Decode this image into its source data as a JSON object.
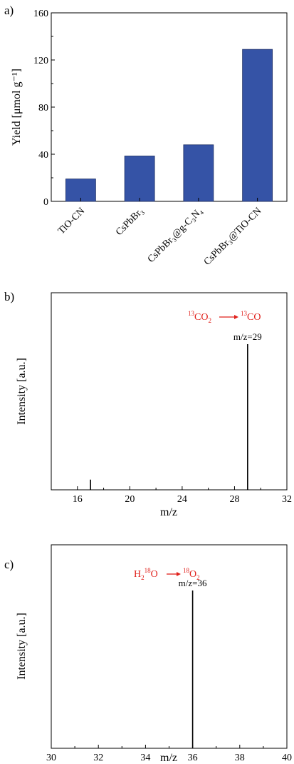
{
  "chart_data": [
    {
      "panel": "a)",
      "type": "bar",
      "categories": [
        "TiO-CN",
        "CsPbBr₃",
        "CsPbBr₃@g-C₃N₄",
        "CsPbBr₃@TiO-CN"
      ],
      "values": [
        19,
        38.5,
        48,
        129
      ],
      "ylabel": "Yield [μmol g⁻¹]",
      "yticks": [
        0,
        40,
        80,
        120,
        160
      ],
      "ylim": [
        0,
        160
      ],
      "bar_color": "#3553a6",
      "grid": false
    },
    {
      "panel": "b)",
      "type": "bar",
      "xlabel": "m/z",
      "ylabel": "Intensity [a.u.]",
      "xticks": [
        16,
        20,
        24,
        28,
        32
      ],
      "xlim": [
        14,
        32
      ],
      "peaks": [
        {
          "x": 17,
          "intensity": 0.07
        },
        {
          "x": 29,
          "intensity": 1.0,
          "label": "m/z=29"
        }
      ],
      "reaction": {
        "from_sup": "13",
        "from_main": "CO",
        "from_sub": "2",
        "to_sup": "13",
        "to_main": "CO"
      },
      "reaction_color": "#e0201b",
      "grid": false
    },
    {
      "panel": "c)",
      "type": "bar",
      "xlabel": "m/z",
      "ylabel": "Intensity [a.u.]",
      "xticks": [
        30,
        32,
        34,
        36,
        38,
        40
      ],
      "xlim": [
        30,
        40
      ],
      "peaks": [
        {
          "x": 36,
          "intensity": 1.0,
          "label": "m/z=36"
        }
      ],
      "reaction": {
        "from_pre": "H",
        "from_pre_sub": "2",
        "from_sup": "18",
        "from_main": "O",
        "to_sup": "18",
        "to_main": "O",
        "to_sub": "2"
      },
      "reaction_color": "#e0201b",
      "grid": false
    }
  ]
}
